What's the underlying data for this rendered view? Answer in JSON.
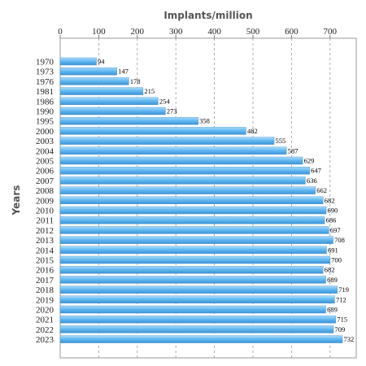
{
  "chart_data": {
    "type": "bar",
    "orientation": "horizontal",
    "title": "",
    "xlabel": "Implants/million",
    "ylabel": "Years",
    "xlim": [
      0,
      750
    ],
    "x_ticks": [
      0,
      100,
      200,
      300,
      400,
      500,
      600,
      700
    ],
    "grid": "vertical dashed",
    "legend": "none",
    "bar_color": "#5fb6f0",
    "categories": [
      "1970",
      "1973",
      "1976",
      "1981",
      "1986",
      "1990",
      "1995",
      "2000",
      "2003",
      "2004",
      "2005",
      "2006",
      "2007",
      "2008",
      "2009",
      "2010",
      "2011",
      "2012",
      "2013",
      "2014",
      "2015",
      "2016",
      "2017",
      "2018",
      "2019",
      "2020",
      "2021",
      "2022",
      "2023"
    ],
    "values": [
      94,
      147,
      178,
      215,
      254,
      273,
      358,
      482,
      555,
      587,
      629,
      647,
      636,
      662,
      682,
      690,
      686,
      697,
      708,
      691,
      700,
      682,
      689,
      719,
      712,
      689,
      715,
      709,
      732
    ]
  }
}
